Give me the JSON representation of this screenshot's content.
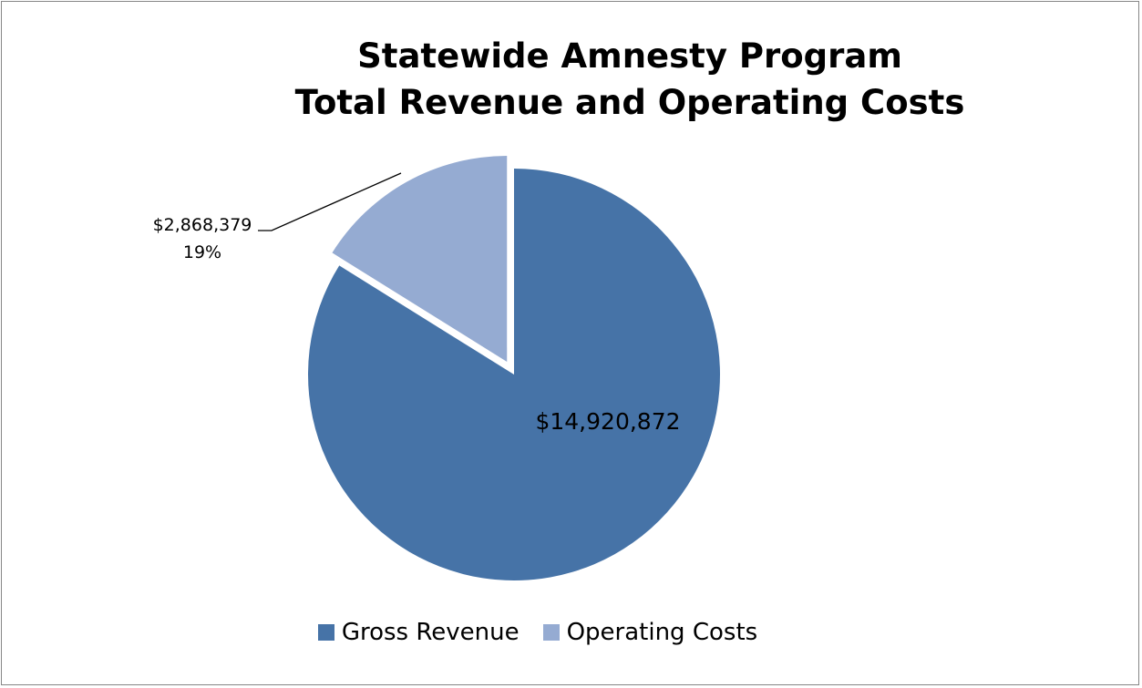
{
  "chart_data": {
    "type": "pie",
    "title": [
      "Statewide Amnesty Program",
      "Total Revenue and Operating Costs"
    ],
    "slices": [
      {
        "name": "Gross Revenue",
        "value": 14920872,
        "label": "$14,920,872",
        "percent_label": "",
        "color": "#4673A7",
        "exploded": false
      },
      {
        "name": "Operating Costs",
        "value": 2868379,
        "label": "$2,868,379",
        "percent_label": "19%",
        "color": "#95ABD2",
        "exploded": true
      }
    ],
    "legend_position": "bottom"
  }
}
